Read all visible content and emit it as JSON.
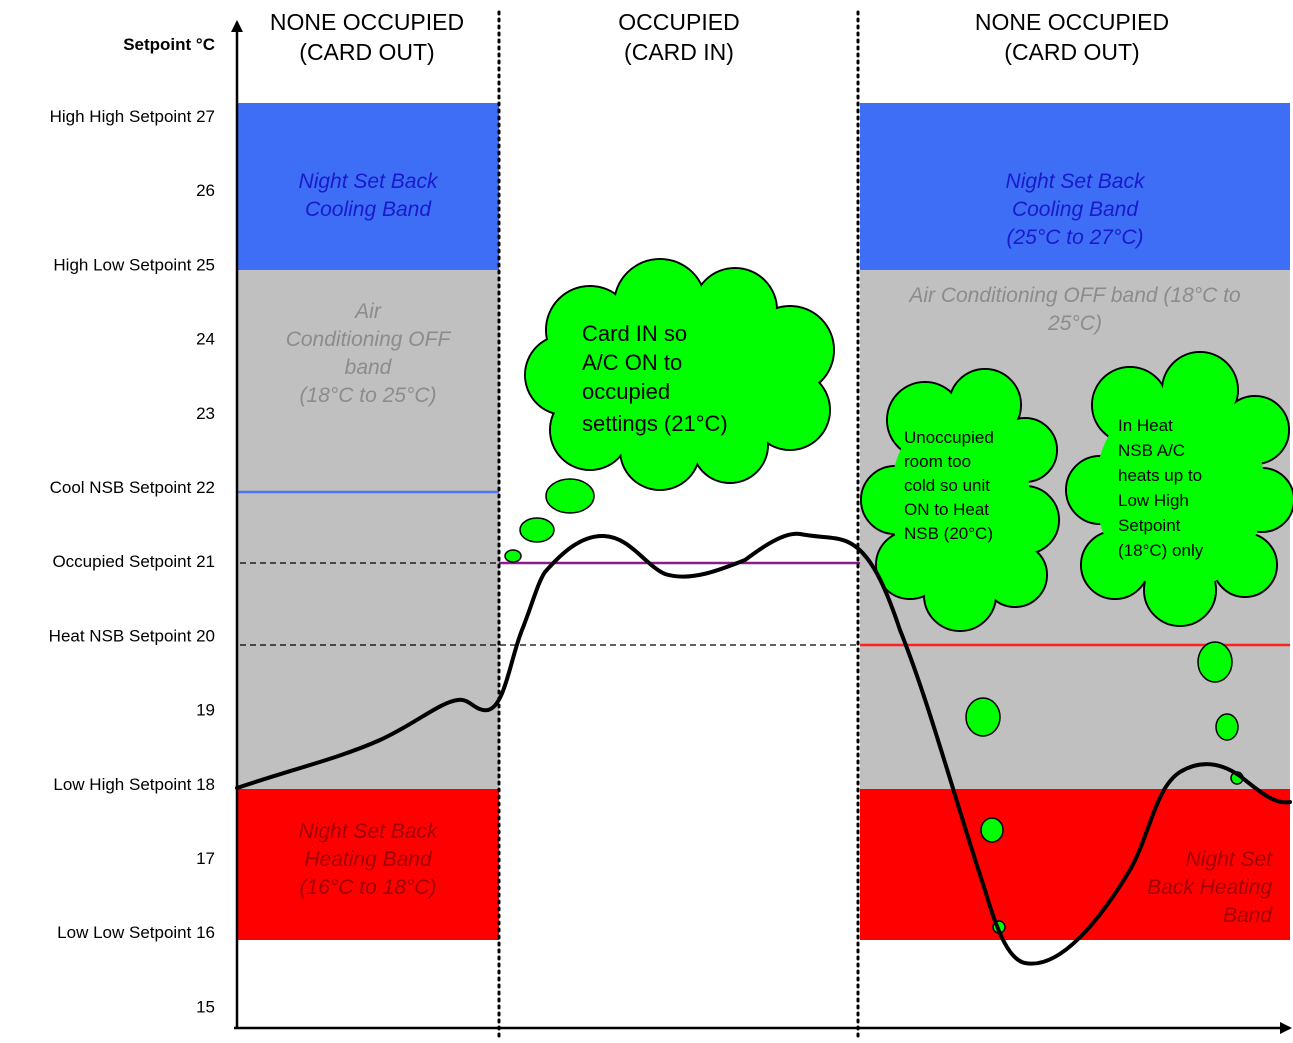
{
  "axis": {
    "title": "Setpoint °C",
    "labels": [
      {
        "value": 27,
        "text": "High High Setpoint 27"
      },
      {
        "value": 26,
        "text": "26"
      },
      {
        "value": 25,
        "text": "High Low Setpoint 25"
      },
      {
        "value": 24,
        "text": "24"
      },
      {
        "value": 23,
        "text": "23"
      },
      {
        "value": 22,
        "text": "Cool NSB Setpoint 22"
      },
      {
        "value": 21,
        "text": "Occupied Setpoint 21"
      },
      {
        "value": 20,
        "text": "Heat NSB Setpoint 20"
      },
      {
        "value": 19,
        "text": "19"
      },
      {
        "value": 18,
        "text": "Low High Setpoint 18"
      },
      {
        "value": 17,
        "text": "17"
      },
      {
        "value": 16,
        "text": "Low Low Setpoint 16"
      },
      {
        "value": 15,
        "text": "15"
      }
    ]
  },
  "headers": {
    "left": {
      "line1": "NONE OCCUPIED",
      "line2": "(CARD OUT)"
    },
    "middle": {
      "line1": "OCCUPIED",
      "line2": "(CARD IN)"
    },
    "right": {
      "line1": "NONE OCCUPIED",
      "line2": "(CARD OUT)"
    }
  },
  "bands": {
    "left_cooling": {
      "lines": [
        "Night Set Back",
        "Cooling Band"
      ]
    },
    "left_off": {
      "lines": [
        "Air",
        "Conditioning OFF",
        "band",
        "(18°C to 25°C)"
      ]
    },
    "left_heating": {
      "lines": [
        "Night Set Back",
        "Heating Band",
        "(16°C to 18°C)"
      ]
    },
    "right_cooling": {
      "lines": [
        "Night Set Back",
        "Cooling Band",
        "(25°C to 27°C)"
      ]
    },
    "right_off": {
      "lines": [
        "Air Conditioning OFF band (18°C to",
        "25°C)"
      ]
    },
    "right_heating": {
      "lines": [
        "Night Set",
        "Back Heating",
        "Band"
      ]
    }
  },
  "clouds": {
    "occupied": {
      "lines": [
        "Card IN so",
        "A/C ON to",
        "occupied",
        "settings (21°C)"
      ]
    },
    "unoccupied": {
      "lines": [
        "Unoccupied",
        "room too",
        "cold so unit",
        "ON to Heat",
        "NSB (20°C)"
      ]
    },
    "heat_nsb": {
      "lines": [
        "In Heat",
        "NSB A/C",
        "heats up to",
        "Low High",
        "Setpoint",
        "(18°C) only"
      ]
    }
  },
  "colors": {
    "cooling_band": "#3d6ef5",
    "off_band": "#c0c0c0",
    "heating_band": "#ff0000",
    "cool_nsb_line": "#4f74f0",
    "occupied_line": "#8b1c8b",
    "heat_nsb_line": "#ff2020",
    "cloud_fill": "#00ff00",
    "cooling_text": "#1a1acc",
    "off_text": "#8c8c8c",
    "heating_text": "#a00000"
  }
}
